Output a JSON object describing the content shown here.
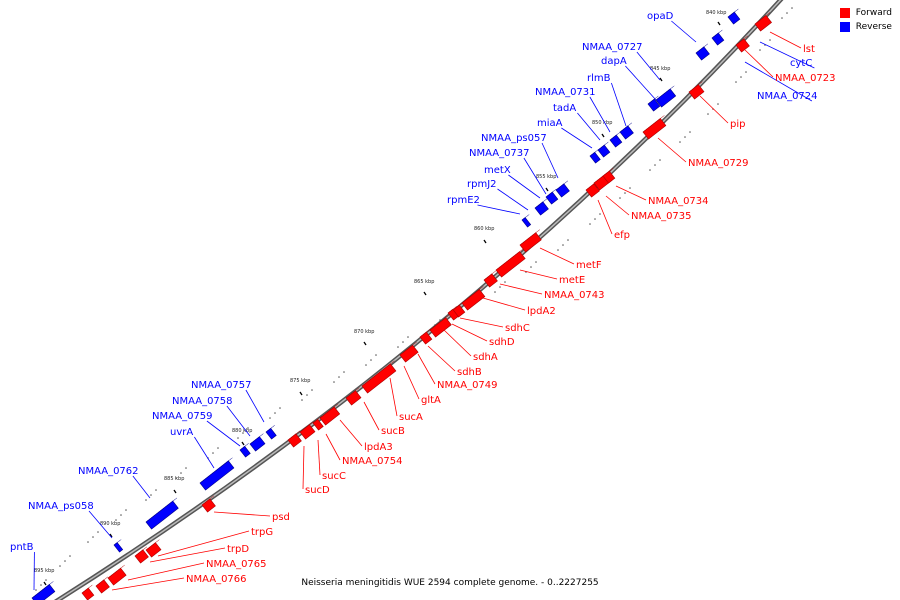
{
  "legend": {
    "forward_label": "Forward",
    "reverse_label": "Reverse",
    "forward_color": "#ff0000",
    "reverse_color": "#0000ff"
  },
  "caption": "Neisseria meningitidis WUE 2594 complete genome. - 0..2227255",
  "ticks": [
    "840 kbp",
    "845 kbp",
    "850 kbp",
    "855 kbp",
    "860 kbp",
    "865 kbp",
    "870 kbp",
    "875 kbp",
    "880 kbp",
    "885 kbp",
    "890 kbp",
    "895 kbp"
  ],
  "genes": [
    {
      "name": "lst",
      "strand": "forward"
    },
    {
      "name": "cytC",
      "strand": "reverse"
    },
    {
      "name": "NMAA_0723",
      "strand": "forward"
    },
    {
      "name": "NMAA_0724",
      "strand": "reverse"
    },
    {
      "name": "pip",
      "strand": "forward"
    },
    {
      "name": "NMAA_0729",
      "strand": "forward"
    },
    {
      "name": "NMAA_0734",
      "strand": "forward"
    },
    {
      "name": "NMAA_0735",
      "strand": "forward"
    },
    {
      "name": "efp",
      "strand": "forward"
    },
    {
      "name": "metF",
      "strand": "forward"
    },
    {
      "name": "metE",
      "strand": "forward"
    },
    {
      "name": "NMAA_0743",
      "strand": "forward"
    },
    {
      "name": "lpdA2",
      "strand": "forward"
    },
    {
      "name": "sdhC",
      "strand": "forward"
    },
    {
      "name": "sdhD",
      "strand": "forward"
    },
    {
      "name": "sdhA",
      "strand": "forward"
    },
    {
      "name": "sdhB",
      "strand": "forward"
    },
    {
      "name": "NMAA_0749",
      "strand": "forward"
    },
    {
      "name": "gltA",
      "strand": "forward"
    },
    {
      "name": "sucA",
      "strand": "forward"
    },
    {
      "name": "sucB",
      "strand": "forward"
    },
    {
      "name": "lpdA3",
      "strand": "forward"
    },
    {
      "name": "NMAA_0754",
      "strand": "forward"
    },
    {
      "name": "sucC",
      "strand": "forward"
    },
    {
      "name": "sucD",
      "strand": "forward"
    },
    {
      "name": "psd",
      "strand": "forward"
    },
    {
      "name": "trpG",
      "strand": "forward"
    },
    {
      "name": "trpD",
      "strand": "forward"
    },
    {
      "name": "NMAA_0765",
      "strand": "forward"
    },
    {
      "name": "NMAA_0766",
      "strand": "forward"
    },
    {
      "name": "opaD",
      "strand": "reverse"
    },
    {
      "name": "NMAA_0727",
      "strand": "reverse"
    },
    {
      "name": "dapA",
      "strand": "reverse"
    },
    {
      "name": "rlmB",
      "strand": "reverse"
    },
    {
      "name": "NMAA_0731",
      "strand": "reverse"
    },
    {
      "name": "tadA",
      "strand": "reverse"
    },
    {
      "name": "miaA",
      "strand": "reverse"
    },
    {
      "name": "NMAA_ps057",
      "strand": "reverse"
    },
    {
      "name": "NMAA_0737",
      "strand": "reverse"
    },
    {
      "name": "metX",
      "strand": "reverse"
    },
    {
      "name": "rpmJ2",
      "strand": "reverse"
    },
    {
      "name": "rpmE2",
      "strand": "reverse"
    },
    {
      "name": "NMAA_0757",
      "strand": "reverse"
    },
    {
      "name": "NMAA_0758",
      "strand": "reverse"
    },
    {
      "name": "NMAA_0759",
      "strand": "reverse"
    },
    {
      "name": "uvrA",
      "strand": "reverse"
    },
    {
      "name": "NMAA_0762",
      "strand": "reverse"
    },
    {
      "name": "NMAA_ps058",
      "strand": "reverse"
    },
    {
      "name": "pntB",
      "strand": "reverse"
    }
  ]
}
